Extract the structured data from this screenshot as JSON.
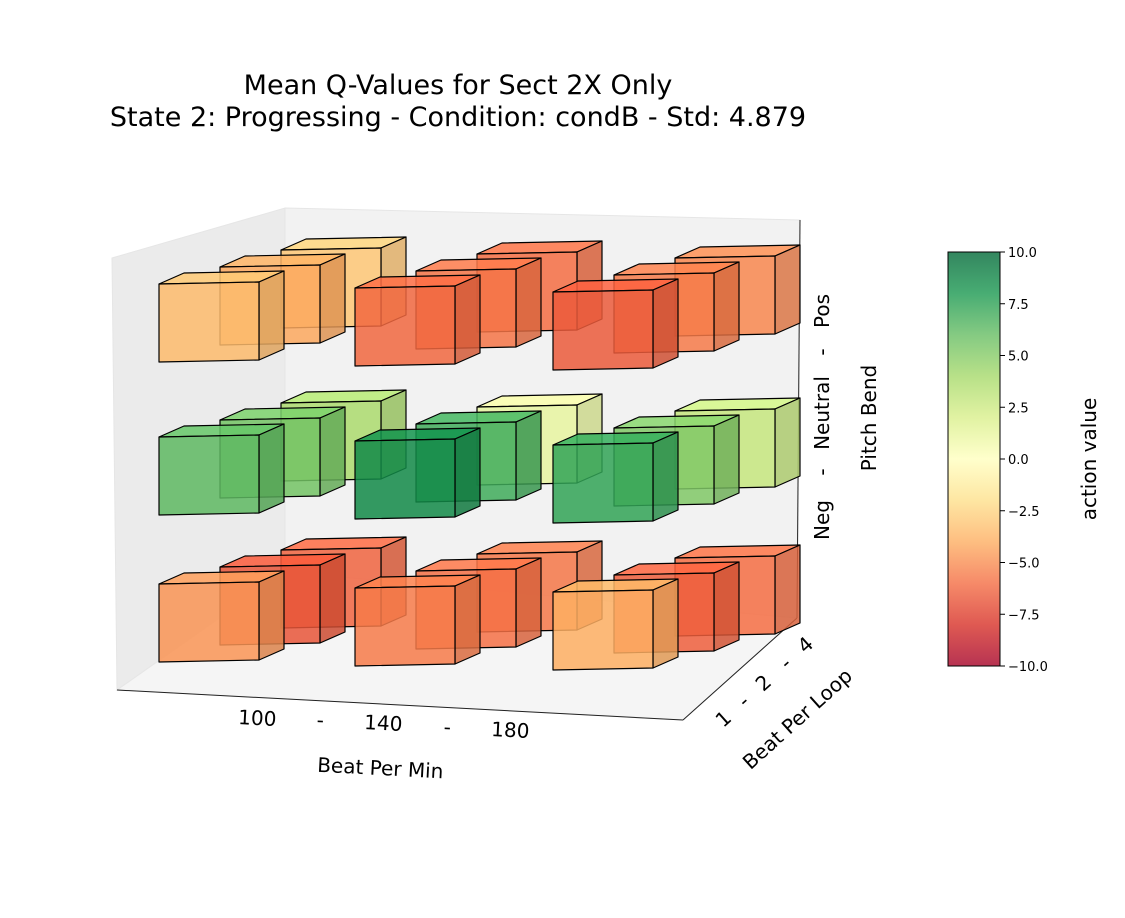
{
  "chart_data": {
    "type": "3d-bar",
    "title_line1": "Mean Q-Values for Sect 2X Only",
    "title_line2": "State 2: Progressing  -  Condition: condB  -  Std: 4.879",
    "x_axis": {
      "label": "Beat Per Min",
      "tick_labels": [
        "100",
        "-",
        "140",
        "-",
        "180"
      ],
      "categories": [
        "100",
        "140",
        "180"
      ]
    },
    "y_axis": {
      "label": "Beat Per Loop",
      "tick_labels": [
        "1",
        "-",
        "2",
        "-",
        "4"
      ],
      "categories": [
        "1",
        "2",
        "4"
      ]
    },
    "z_axis": {
      "label": "Pitch Bend",
      "tick_labels": [
        "Neg",
        "-",
        "Neutral",
        "-",
        "Pos"
      ],
      "categories": [
        "Neg",
        "Neutral",
        "Pos"
      ]
    },
    "colorbar": {
      "label": "action value",
      "min": -10,
      "max": 10,
      "ticks": [
        "10.0",
        "7.5",
        "5.0",
        "2.5",
        "0.0",
        "−2.5",
        "−5.0",
        "−7.5",
        "−10.0"
      ],
      "colormap": "RdYlGn",
      "stops": [
        "#a50026",
        "#d73027",
        "#f46d43",
        "#fdae61",
        "#fee08b",
        "#ffffbf",
        "#d9ef8b",
        "#a6d96a",
        "#66bd63",
        "#1a9850",
        "#006837"
      ]
    },
    "values": {
      "note": "values indexed [pitch][bpm][beat_per_loop]",
      "Pos": {
        "100": {
          "1": -3.5,
          "2": -4.2,
          "4": -3.0
        },
        "140": {
          "1": -6.2,
          "2": -5.8,
          "4": -6.0
        },
        "180": {
          "1": -6.6,
          "2": -5.6,
          "4": -5.2
        }
      },
      "Neutral": {
        "100": {
          "1": 6.2,
          "2": 5.6,
          "4": 3.8
        },
        "140": {
          "1": 8.6,
          "2": 7.0,
          "4": 1.2
        },
        "180": {
          "1": 7.4,
          "2": 5.2,
          "4": 2.8
        }
      },
      "Neg": {
        "100": {
          "1": -4.8,
          "2": -6.8,
          "4": -6.3
        },
        "140": {
          "1": -5.6,
          "2": -5.9,
          "4": -5.7
        },
        "180": {
          "1": -4.0,
          "2": -6.5,
          "4": -6.0
        }
      }
    }
  }
}
